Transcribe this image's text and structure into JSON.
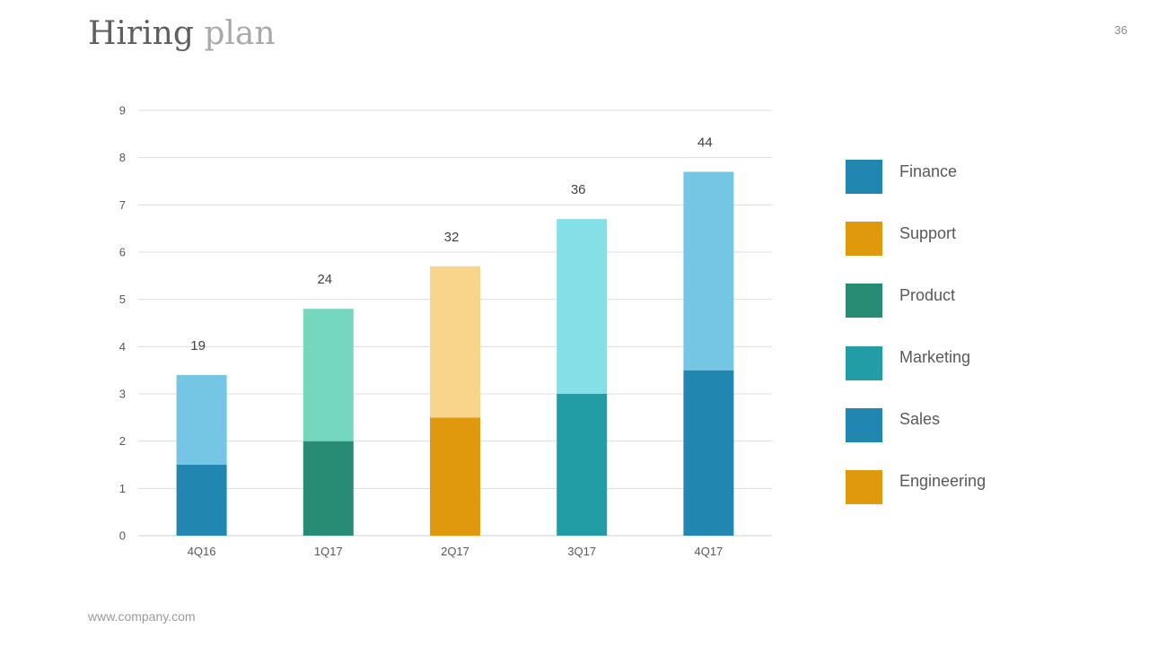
{
  "slide": {
    "title_main": "Hiring",
    "title_accent": "plan",
    "page_number": "36",
    "footer": "www.company.com"
  },
  "legend": [
    {
      "label": "Finance",
      "color": "#2187b0"
    },
    {
      "label": "Support",
      "color": "#e0990d"
    },
    {
      "label": "Product",
      "color": "#288c74"
    },
    {
      "label": "Marketing",
      "color": "#229da5"
    },
    {
      "label": "Sales",
      "color": "#2187b0"
    },
    {
      "label": "Engineering",
      "color": "#e0990d"
    }
  ],
  "chart_data": {
    "type": "bar",
    "stacked": true,
    "categories": [
      "4Q16",
      "1Q17",
      "2Q17",
      "3Q17",
      "4Q17"
    ],
    "ylim": [
      0,
      9
    ],
    "yticks": [
      0,
      1,
      2,
      3,
      4,
      5,
      6,
      7,
      8,
      9
    ],
    "grid": true,
    "legend_position": "right",
    "totals": [
      "19",
      "24",
      "32",
      "36",
      "44"
    ],
    "stacks": [
      [
        {
          "value": 1.5,
          "color": "#2187b0"
        },
        {
          "value": 1.9,
          "color": "#75c6e4"
        }
      ],
      [
        {
          "value": 2.0,
          "color": "#288c74"
        },
        {
          "value": 2.8,
          "color": "#76d7bf"
        }
      ],
      [
        {
          "value": 2.5,
          "color": "#e0990d"
        },
        {
          "value": 3.2,
          "color": "#f9d48b"
        }
      ],
      [
        {
          "value": 3.0,
          "color": "#229da5"
        },
        {
          "value": 3.7,
          "color": "#85dfe6"
        }
      ],
      [
        {
          "value": 3.5,
          "color": "#2187b0"
        },
        {
          "value": 4.2,
          "color": "#75c6e4"
        }
      ]
    ]
  }
}
